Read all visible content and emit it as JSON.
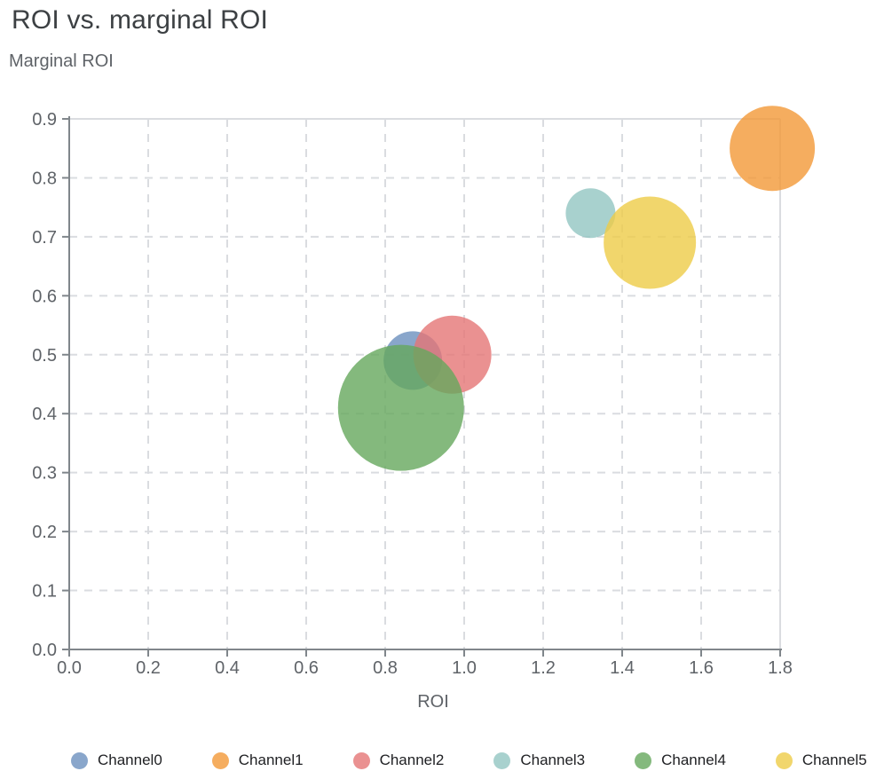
{
  "page": {
    "title": "ROI vs. marginal ROI"
  },
  "chart_data": {
    "type": "scatter",
    "subtype": "bubble",
    "title": "ROI vs. marginal ROI",
    "subtitle": "Marginal ROI",
    "xlabel": "ROI",
    "ylabel": "Marginal ROI",
    "xlim": [
      0.0,
      1.8
    ],
    "ylim": [
      0.0,
      0.9
    ],
    "xticks": [
      0.0,
      0.2,
      0.4,
      0.6,
      0.8,
      1.0,
      1.2,
      1.4,
      1.6,
      1.8
    ],
    "yticks": [
      0.0,
      0.1,
      0.2,
      0.3,
      0.4,
      0.5,
      0.6,
      0.7,
      0.8,
      0.9
    ],
    "grid": "dashed",
    "legend_position": "bottom",
    "bubble_opacity": 0.8,
    "series": [
      {
        "name": "Channel0",
        "x": 0.87,
        "y": 0.49,
        "radius_px": 33,
        "color": "#6B90BE"
      },
      {
        "name": "Channel1",
        "x": 1.78,
        "y": 0.85,
        "radius_px": 48,
        "color": "#F29837"
      },
      {
        "name": "Channel2",
        "x": 0.97,
        "y": 0.5,
        "radius_px": 44,
        "color": "#E57575"
      },
      {
        "name": "Channel3",
        "x": 1.32,
        "y": 0.74,
        "radius_px": 28,
        "color": "#92C6C2"
      },
      {
        "name": "Channel4",
        "x": 0.84,
        "y": 0.41,
        "radius_px": 71,
        "color": "#65A85D"
      },
      {
        "name": "Channel5",
        "x": 1.47,
        "y": 0.69,
        "radius_px": 52,
        "color": "#EDCC47"
      }
    ],
    "style_colors": {
      "axis": "#80868b",
      "grid": "#dadce0",
      "tick_label": "#5f6368",
      "title": "#3c4043",
      "legend_text": "#202124"
    }
  }
}
